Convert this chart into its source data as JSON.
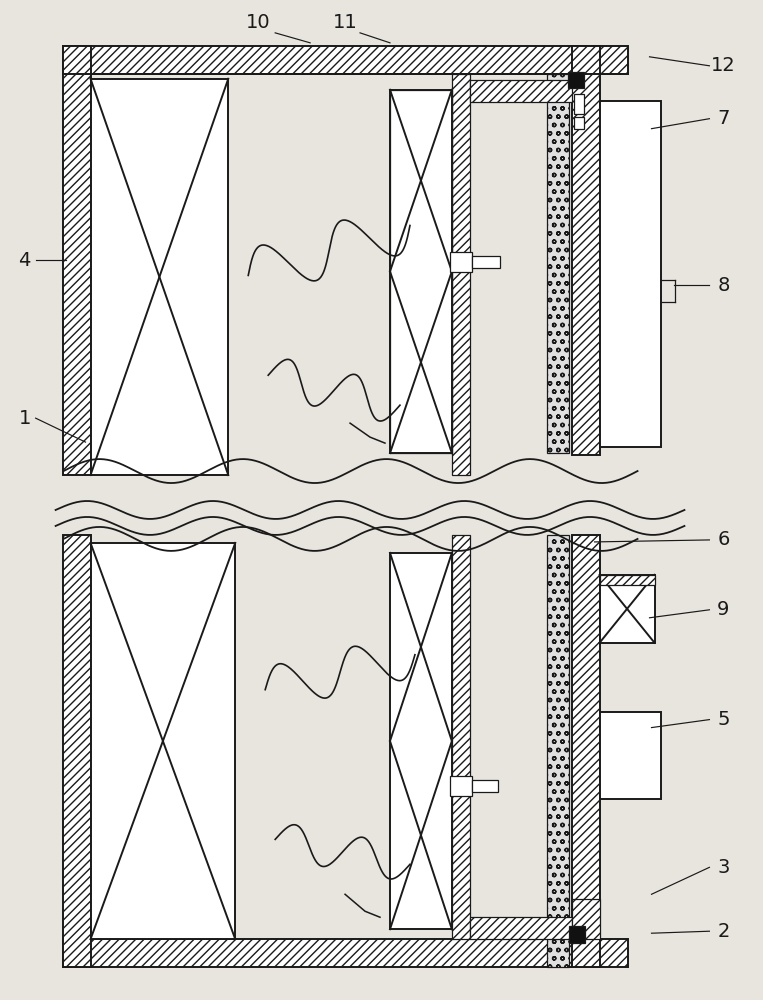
{
  "bg_color": "#ffffff",
  "line_color": "#1a1a1a",
  "label_fontsize": 14,
  "lw_main": 1.4,
  "lw_thin": 0.9,
  "lw_thick": 2.0,
  "wall_thickness": 0.28,
  "foam_hatch": "oo",
  "wall_hatch": "////",
  "fig_bg": "#e8e4de"
}
